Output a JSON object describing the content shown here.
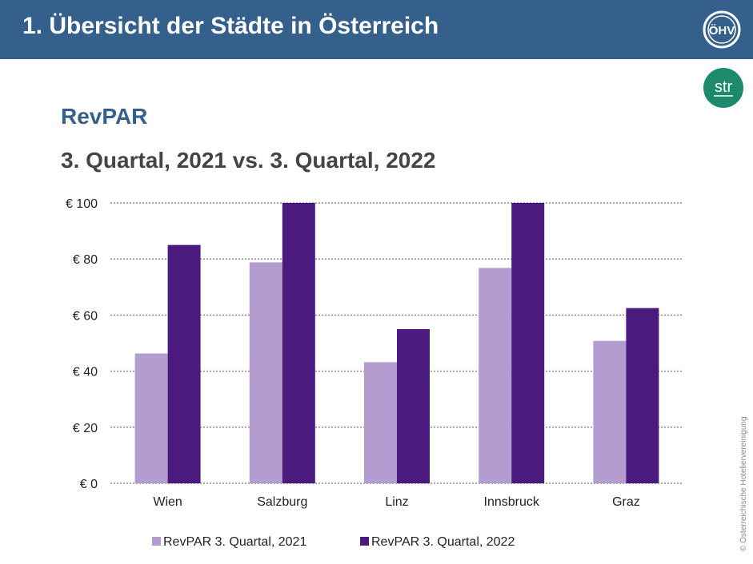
{
  "header": {
    "title": "1. Übersicht der Städte in Österreich",
    "logo_text": "ÖHV",
    "badge_text": "str"
  },
  "metric_heading": "RevPAR",
  "period_heading": "3. Quartal, 2021 vs. 3. Quartal, 2022",
  "copyright": "© Österreichische Hoteliervereinigung",
  "colors": {
    "header_bg": "#35608b",
    "series_2021": "#b39dd0",
    "series_2022": "#4b1a7e",
    "str_badge": "#1d8a6d"
  },
  "chart_data": {
    "type": "bar",
    "categories": [
      "Wien",
      "Salzburg",
      "Linz",
      "Innsbruck",
      "Graz"
    ],
    "series": [
      {
        "name": "RevPAR 3. Quartal, 2021",
        "values": [
          46.3,
          78.8,
          43.2,
          76.8,
          50.8
        ]
      },
      {
        "name": "RevPAR 3. Quartal, 2022",
        "values": [
          85.0,
          100.0,
          55.0,
          100.0,
          62.5
        ]
      }
    ],
    "ylim": [
      0,
      100
    ],
    "yticks": [
      0,
      20,
      40,
      60,
      80,
      100
    ],
    "ytick_labels": [
      "€ 0",
      "€ 20",
      "€ 40",
      "€ 60",
      "€ 80",
      "€ 100"
    ],
    "grid": true,
    "legend_position": "bottom",
    "title": "",
    "xlabel": "",
    "ylabel": ""
  }
}
